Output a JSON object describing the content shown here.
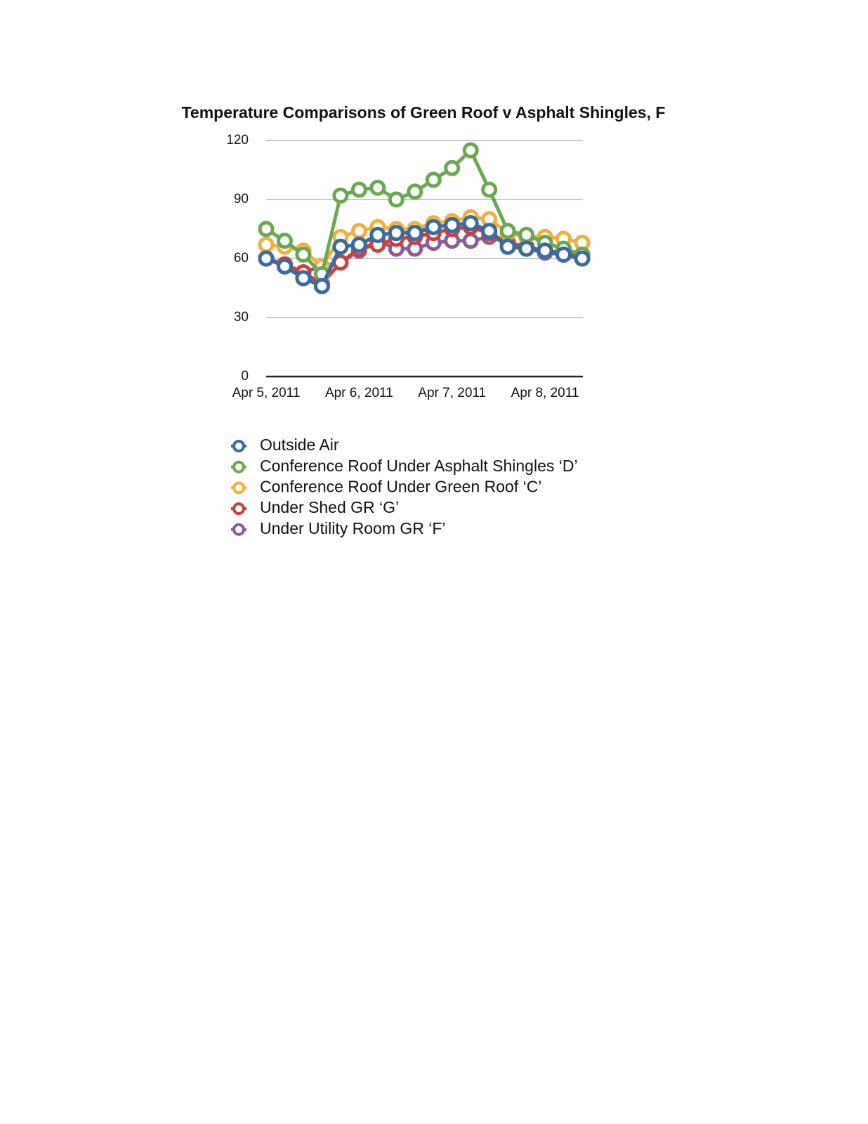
{
  "chart_data": {
    "type": "line",
    "title": "Temperature Comparisons of Green Roof v Asphalt Shingles, F",
    "categories": [
      "Apr 5, 2011",
      null,
      null,
      null,
      null,
      "Apr 6, 2011",
      null,
      null,
      null,
      null,
      "Apr 7, 2011",
      null,
      null,
      null,
      null,
      "Apr 8, 2011",
      null,
      null
    ],
    "series": [
      {
        "name": "Outside Air",
        "color": "#3a6aa0",
        "values": [
          60,
          56,
          50,
          46,
          66,
          67,
          72,
          73,
          73,
          76,
          77,
          78,
          74,
          66,
          65,
          64,
          62,
          60
        ]
      },
      {
        "name": "Conference Roof Under Asphalt Shingles ‘D’",
        "color": "#6aa84f",
        "values": [
          75,
          69,
          62,
          52,
          92,
          95,
          96,
          90,
          94,
          100,
          106,
          115,
          95,
          74,
          72,
          68,
          65,
          62
        ]
      },
      {
        "name": "Conference Roof Under Green Roof ‘C’",
        "color": "#f0b03c",
        "values": [
          67,
          66,
          64,
          56,
          71,
          74,
          76,
          75,
          75,
          78,
          79,
          81,
          80,
          73,
          71,
          71,
          70,
          68
        ]
      },
      {
        "name": "Under Shed GR ‘G’",
        "color": "#c8413c",
        "values": [
          60,
          57,
          53,
          47,
          58,
          65,
          67,
          70,
          71,
          73,
          75,
          76,
          73,
          68,
          66,
          64,
          63,
          62
        ]
      },
      {
        "name": "Under Utility Room GR ‘F’",
        "color": "#8a5a9a",
        "values": [
          60,
          57,
          53,
          56,
          58,
          64,
          69,
          65,
          65,
          68,
          69,
          69,
          71,
          68,
          65,
          63,
          62,
          61
        ]
      }
    ],
    "ylim": [
      0,
      120
    ],
    "yticks": [
      0,
      30,
      60,
      90,
      120
    ],
    "grid": true
  }
}
